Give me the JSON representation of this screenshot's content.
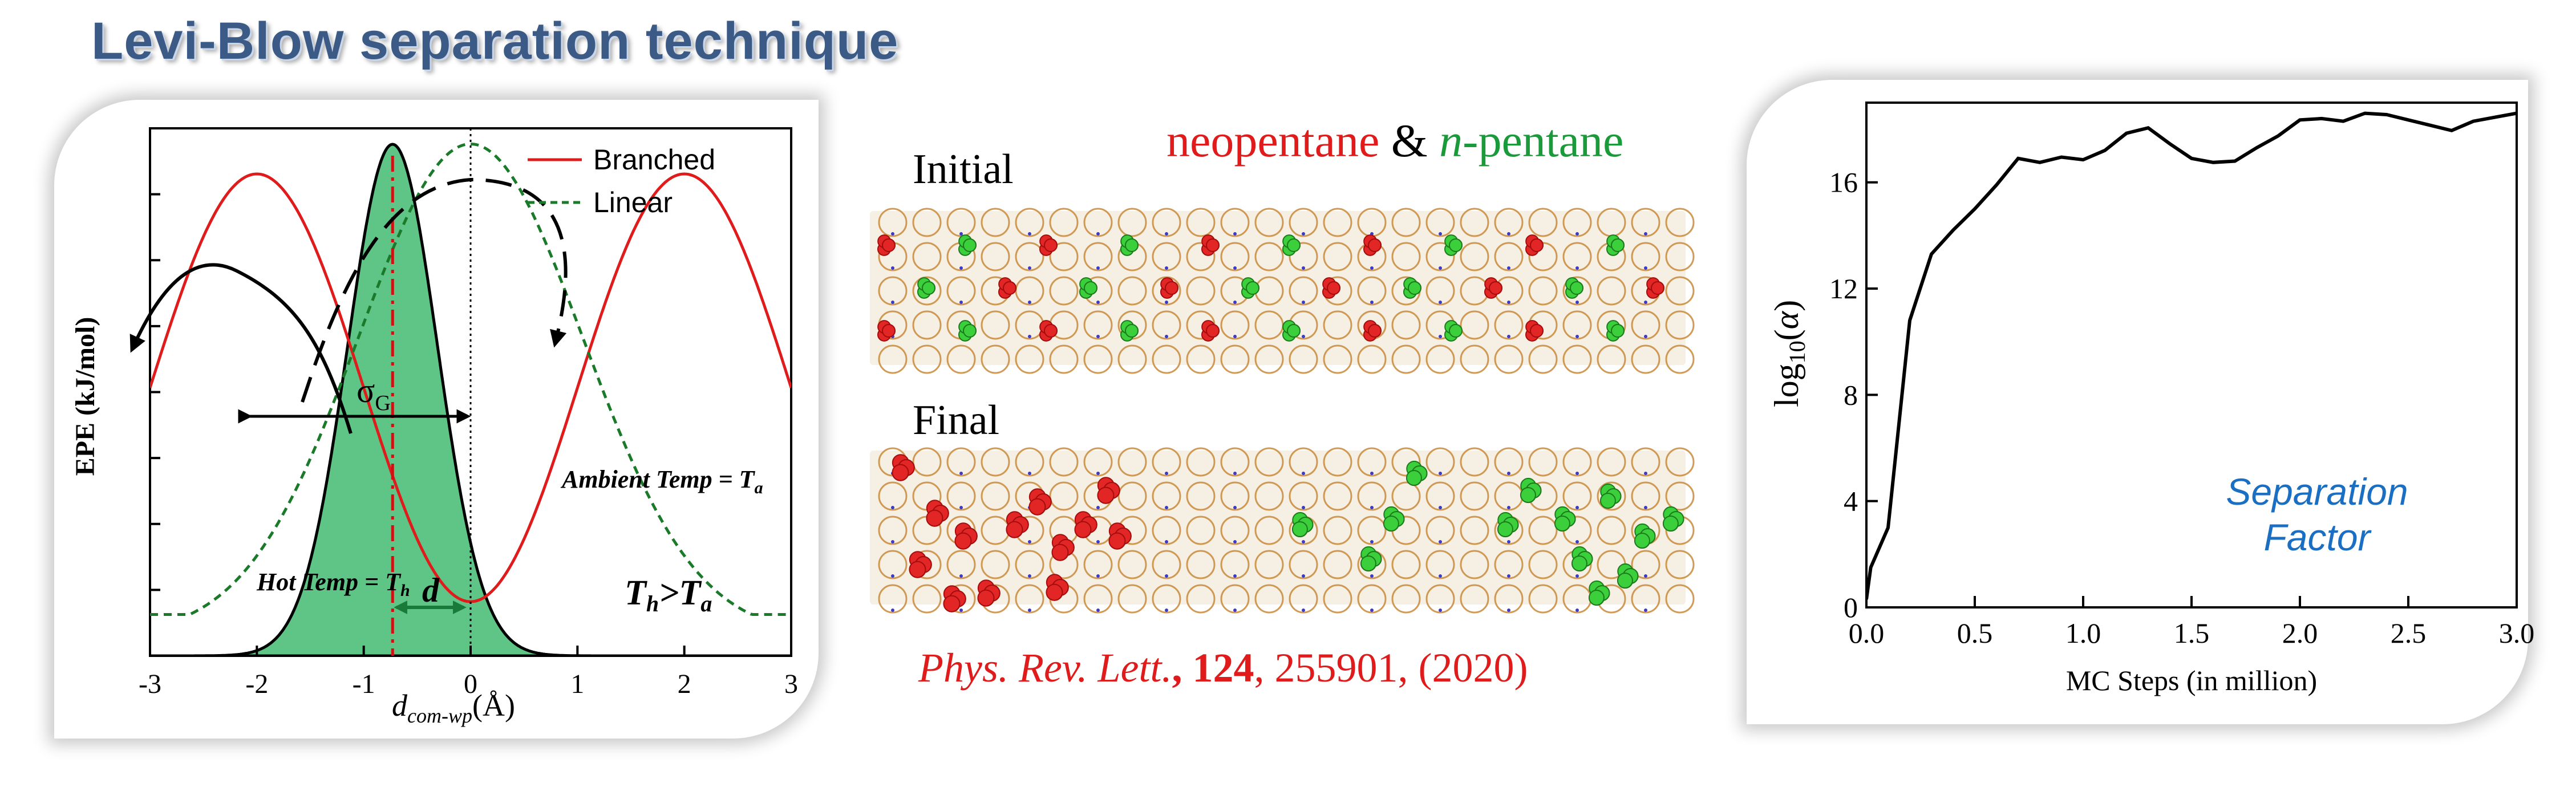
{
  "header": {
    "title": "Levi-Blow separation technique"
  },
  "colors": {
    "red": "#e01b1b",
    "green": "#1a9a3a",
    "title": "#3c5a86",
    "fill_green": "#5fc587",
    "blue_text": "#1b6fc2"
  },
  "left_chart": {
    "ylabel": "EPE (kJ/mol)",
    "xlabel_main": "d",
    "xlabel_sub": "com-wp",
    "xlabel_unit": "(Å)",
    "legend": [
      "Branched",
      "Linear"
    ],
    "annotations": {
      "sigma": "σ",
      "sigma_sub": "G",
      "d": "d",
      "hot_temp": "Hot Temp = T",
      "hot_sub": "h",
      "ambient_temp": "Ambient Temp = T",
      "ambient_sub": "a",
      "relation_a": "T",
      "relation_a_sub": "h",
      "relation_b": ">T",
      "relation_b_sub": "a"
    },
    "xticks": [
      "-3",
      "-2",
      "-1",
      "0",
      "1",
      "2",
      "3"
    ]
  },
  "middle": {
    "legend_part1": "neopentane",
    "legend_amp": " & ",
    "legend_italic": "n",
    "legend_part2": "-pentane",
    "initial_label": "Initial",
    "final_label": "Final",
    "ref_journal": "Phys. Rev. Lett.",
    "ref_comma1": ", ",
    "ref_volume": "124",
    "ref_rest": ", 255901, (2020)"
  },
  "chart_data": [
    {
      "type": "line",
      "title": "",
      "xlabel": "d_com-wp (Å)",
      "ylabel": "EPE (kJ/mol)",
      "xlim": [
        -3,
        3
      ],
      "series": [
        {
          "name": "Branched",
          "x": [
            -3,
            -2.5,
            -2,
            -1.5,
            -1,
            -0.5,
            0,
            0.5,
            1,
            1.5,
            2,
            2.5,
            3
          ],
          "y": [
            0.5,
            0.82,
            1.0,
            0.82,
            0.5,
            0.18,
            0.0,
            0.18,
            0.5,
            0.82,
            1.0,
            0.82,
            0.5
          ]
        },
        {
          "name": "Linear",
          "x": [
            -3,
            -2,
            -1.5,
            -1,
            -0.5,
            0,
            0.5,
            1,
            1.5,
            2,
            3
          ],
          "y": [
            0.0,
            0.28,
            0.52,
            0.82,
            0.98,
            1.15,
            0.98,
            0.82,
            0.52,
            0.28,
            0.0
          ]
        }
      ]
    },
    {
      "type": "line",
      "title": "",
      "xlabel": "MC Steps (in million)",
      "ylabel": "log10(α)",
      "xlim": [
        0,
        3.0
      ],
      "ylim": [
        0,
        19
      ],
      "xticks": [
        "0.0",
        "0.5",
        "1.0",
        "1.5",
        "2.0",
        "2.5",
        "3.0"
      ],
      "yticks": [
        "0",
        "4",
        "8",
        "12",
        "16"
      ],
      "annotation": "Separation Factor",
      "series": [
        {
          "x": [
            0.0,
            0.02,
            0.1,
            0.2,
            0.3,
            0.4,
            0.5,
            0.6,
            0.7,
            0.8,
            0.9,
            1.0,
            1.1,
            1.2,
            1.3,
            1.4,
            1.5,
            1.6,
            1.7,
            1.8,
            1.9,
            2.0,
            2.1,
            2.2,
            2.3,
            2.4,
            2.5,
            2.6,
            2.7,
            2.8,
            2.9,
            3.0
          ],
          "y": [
            0.3,
            1.5,
            3.0,
            10.8,
            13.3,
            14.2,
            15.0,
            15.9,
            16.9,
            16.75,
            16.95,
            16.85,
            17.2,
            17.85,
            18.05,
            17.45,
            16.9,
            16.75,
            16.8,
            17.3,
            17.75,
            18.35,
            18.4,
            18.3,
            18.6,
            18.55,
            18.35,
            18.15,
            17.95,
            18.3,
            18.45,
            18.6
          ]
        }
      ]
    }
  ]
}
